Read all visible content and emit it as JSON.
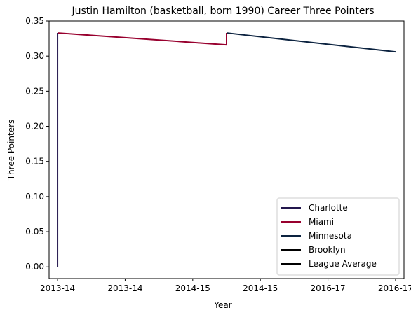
{
  "chart_data": {
    "type": "line",
    "title": "Justin Hamilton (basketball, born 1990) Career Three Pointers",
    "xlabel": "Year",
    "ylabel": "Three Pointers",
    "x_ticks": [
      "2013-14",
      "2013-14",
      "2014-15",
      "2014-15",
      "2016-17",
      "2016-17"
    ],
    "x_range": [
      -0.025,
      1.025
    ],
    "y_ticks": [
      "0.00",
      "0.05",
      "0.10",
      "0.15",
      "0.20",
      "0.25",
      "0.30",
      "0.35"
    ],
    "ylim": [
      -0.0167,
      0.35
    ],
    "series": [
      {
        "name": "Charlotte",
        "color": "#23174d",
        "points": [
          [
            0.0,
            0.0
          ],
          [
            0.0,
            0.333
          ]
        ]
      },
      {
        "name": "Miami",
        "color": "#98002e",
        "points": [
          [
            0.0,
            0.333
          ],
          [
            0.5,
            0.316
          ],
          [
            0.5,
            0.333
          ]
        ]
      },
      {
        "name": "Minnesota",
        "color": "#0c2340",
        "points": [
          [
            0.5,
            0.333
          ],
          [
            1.0,
            0.306
          ]
        ]
      },
      {
        "name": "Brooklyn",
        "color": "#000000",
        "points": []
      },
      {
        "name": "League Average",
        "color": "#000000",
        "points": []
      }
    ],
    "grid": false,
    "legend_position": "lower-right"
  }
}
